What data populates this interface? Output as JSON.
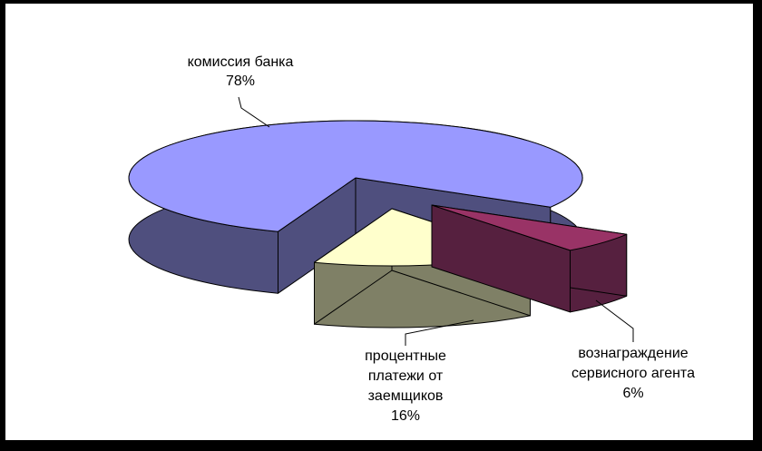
{
  "chart_data": {
    "type": "pie",
    "style": "3d-exploded-pie",
    "title": "",
    "legend": "none",
    "background": "#FFFFFF",
    "frame_color": "#000000",
    "outline_color": "#000000",
    "start_angle_deg": 200,
    "direction": "clockwise",
    "slices": [
      {
        "label": "комиссия банка",
        "value_pct": 78,
        "pct_text": "78%",
        "color": "#9999FF",
        "side_color": "#4F4F7E",
        "label_lines": [
          "комиссия банка",
          "78%"
        ]
      },
      {
        "label": "вознаграждение сервисного агента",
        "value_pct": 6,
        "pct_text": "6%",
        "color": "#993366",
        "side_color": "#56203F",
        "label_lines": [
          "вознаграждение",
          "сервисного агента",
          "6%"
        ]
      },
      {
        "label": "процентные платежи от заемщиков",
        "value_pct": 16,
        "pct_text": "16%",
        "color": "#FFFFCC",
        "side_color": "#7F8066",
        "label_lines": [
          "процентные",
          "платежи от",
          "заемщиков",
          "16%"
        ]
      }
    ]
  }
}
